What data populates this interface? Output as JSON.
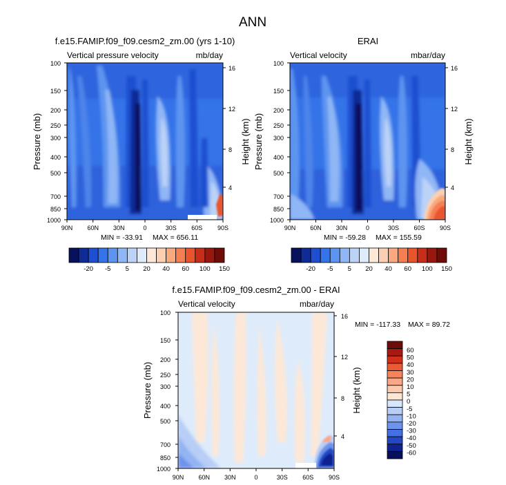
{
  "figure_title": "ANN",
  "chart_data": [
    {
      "type": "heatmap",
      "title": "f.e15.FAMIP.f09_f09.cesm2_zm.00 (yrs 1-10)",
      "left_label": "Vertical pressure velocity",
      "right_label": "mb/day",
      "ylabel": "Pressure (mb)",
      "y2label": "Height (km)",
      "x_ticks": [
        "90N",
        "60N",
        "30N",
        "0",
        "30S",
        "60S",
        "90S"
      ],
      "y_ticks": [
        "100",
        "150",
        "200",
        "250",
        "300",
        "400",
        "500",
        "700",
        "850",
        "1000"
      ],
      "y2_ticks": [
        "16",
        "12",
        "8",
        "4"
      ],
      "min_label": "MIN = -33.91",
      "max_label": "MAX = 656.11",
      "stats": {
        "min": -33.91,
        "max": 656.11
      },
      "colorbar_ticks": [
        "-20",
        "-5",
        "5",
        "20",
        "40",
        "60",
        "100",
        "150"
      ]
    },
    {
      "type": "heatmap",
      "title": "ERAI",
      "left_label": "Vertical velocity",
      "right_label": "mbar/day",
      "ylabel": "Pressure (mb)",
      "y2label": "Height (km)",
      "x_ticks": [
        "90N",
        "60N",
        "30N",
        "0",
        "30S",
        "60S",
        "90S"
      ],
      "y_ticks": [
        "100",
        "150",
        "200",
        "250",
        "300",
        "400",
        "500",
        "700",
        "850",
        "1000"
      ],
      "y2_ticks": [
        "16",
        "12",
        "8",
        "4"
      ],
      "min_label": "MIN = -59.28",
      "max_label": "MAX = 155.59",
      "stats": {
        "min": -59.28,
        "max": 155.59
      },
      "colorbar_ticks": [
        "-20",
        "-5",
        "5",
        "20",
        "40",
        "60",
        "100",
        "150"
      ]
    },
    {
      "type": "heatmap",
      "title": "f.e15.FAMIP.f09_f09.cesm2_zm.00 - ERAI",
      "left_label": "Vertical velocity",
      "right_label": "mbar/day",
      "ylabel": "Pressure (mb)",
      "y2label": "Height (km)",
      "x_ticks": [
        "90N",
        "60N",
        "30N",
        "0",
        "30S",
        "60S",
        "90S"
      ],
      "y_ticks": [
        "100",
        "150",
        "200",
        "250",
        "300",
        "400",
        "500",
        "700",
        "850",
        "1000"
      ],
      "y2_ticks": [
        "16",
        "12",
        "8",
        "4"
      ],
      "min_label": "MIN = -117.33",
      "max_label": "MAX = 89.72",
      "stats": {
        "min": -117.33,
        "max": 89.72
      },
      "colorbar_ticks": [
        "60",
        "50",
        "40",
        "30",
        "20",
        "10",
        "5",
        "0",
        "-5",
        "-10",
        "-20",
        "-30",
        "-40",
        "-50",
        "-60"
      ]
    }
  ],
  "colors": {
    "top_scale": [
      "#08115c",
      "#102a96",
      "#1f4fd0",
      "#3573e8",
      "#5d94f0",
      "#8fb6f5",
      "#bcd3f7",
      "#deebfb",
      "#fde8d7",
      "#fbd0b2",
      "#f9a97f",
      "#f57f52",
      "#e8552d",
      "#c82d1a",
      "#98170e",
      "#6e0d08"
    ],
    "diff_scale": [
      "#6e0d08",
      "#a8190f",
      "#d22f1a",
      "#ec5a34",
      "#f5845c",
      "#f8a787",
      "#fbc9ae",
      "#fde6d2",
      "#d7e6fa",
      "#b8cef6",
      "#93b3f2",
      "#6d93ec",
      "#4570e1",
      "#2448c4",
      "#0f2290",
      "#07105a"
    ]
  }
}
